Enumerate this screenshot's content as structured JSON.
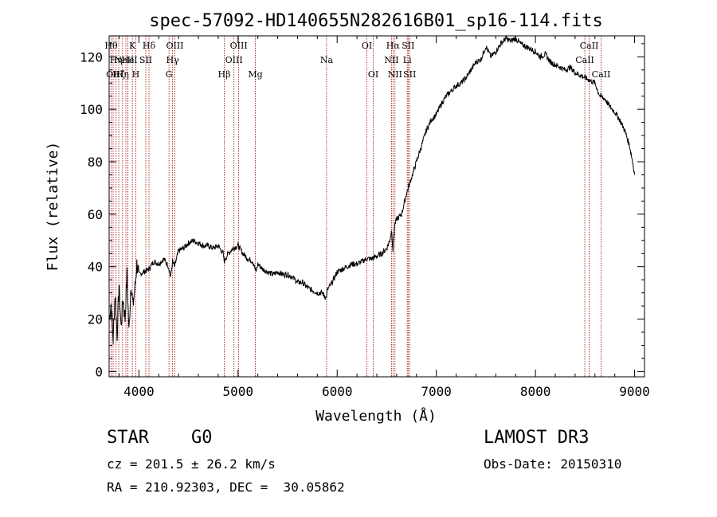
{
  "chart_data": {
    "type": "line",
    "title": "spec-57092-HD140655N282616B01_sp16-114.fits",
    "xlabel": "Wavelength (Å)",
    "ylabel": "Flux (relative)",
    "xlim": [
      3700,
      9100
    ],
    "ylim": [
      -2,
      128
    ],
    "xticks": [
      4000,
      5000,
      6000,
      7000,
      8000,
      9000
    ],
    "yticks": [
      0,
      20,
      40,
      60,
      80,
      100,
      120
    ],
    "grid": false,
    "series": [
      {
        "name": "flux",
        "x": [
          3700,
          3720,
          3740,
          3760,
          3780,
          3800,
          3820,
          3840,
          3860,
          3880,
          3900,
          3920,
          3940,
          3960,
          3980,
          4000,
          4050,
          4100,
          4150,
          4200,
          4250,
          4300,
          4320,
          4340,
          4360,
          4400,
          4450,
          4500,
          4550,
          4600,
          4650,
          4700,
          4750,
          4800,
          4850,
          4860,
          4900,
          4950,
          5000,
          5050,
          5100,
          5150,
          5180,
          5200,
          5250,
          5300,
          5350,
          5400,
          5450,
          5500,
          5550,
          5600,
          5650,
          5700,
          5750,
          5800,
          5850,
          5890,
          5900,
          5950,
          6000,
          6050,
          6100,
          6150,
          6200,
          6250,
          6300,
          6350,
          6400,
          6450,
          6500,
          6530,
          6550,
          6563,
          6580,
          6600,
          6650,
          6700,
          6750,
          6800,
          6850,
          6900,
          6950,
          7000,
          7050,
          7100,
          7150,
          7200,
          7250,
          7300,
          7350,
          7400,
          7450,
          7500,
          7550,
          7600,
          7650,
          7700,
          7750,
          7800,
          7850,
          7900,
          7950,
          8000,
          8050,
          8100,
          8150,
          8200,
          8250,
          8300,
          8350,
          8400,
          8450,
          8500,
          8550,
          8600,
          8650,
          8700,
          8750,
          8800,
          8850,
          8900,
          8950,
          8980,
          9000
        ],
        "y": [
          20,
          26,
          12,
          30,
          14,
          33,
          17,
          28,
          20,
          37,
          15,
          34,
          25,
          32,
          41,
          37,
          38,
          39,
          42,
          41,
          43,
          40,
          36,
          42,
          40,
          46,
          47,
          49,
          50,
          49,
          48,
          48,
          47,
          48,
          45,
          42,
          45,
          47,
          48,
          45,
          43,
          42,
          38,
          41,
          39,
          38,
          37,
          38,
          37,
          37,
          36,
          34,
          34,
          32,
          31,
          30,
          30,
          28,
          31,
          34,
          38,
          39,
          40,
          41,
          41,
          42,
          43,
          43,
          44,
          45,
          47,
          50,
          54,
          46,
          56,
          58,
          60,
          68,
          74,
          80,
          86,
          92,
          96,
          98,
          102,
          105,
          107,
          109,
          110,
          112,
          115,
          118,
          119,
          124,
          120,
          122,
          125,
          127,
          126,
          127,
          125,
          124,
          123,
          122,
          120,
          121,
          118,
          117,
          116,
          115,
          116,
          114,
          113,
          112,
          111,
          110,
          105,
          104,
          101,
          99,
          96,
          92,
          86,
          80,
          75
        ]
      }
    ],
    "lines": [
      {
        "x": 3720,
        "label": "Hθ",
        "row": 0
      },
      {
        "x": 3740,
        "label": "OII",
        "row": 2
      },
      {
        "x": 3770,
        "label": "Hη",
        "row": 1
      },
      {
        "x": 3797,
        "label": "Hζ",
        "row": 2
      },
      {
        "x": 3835,
        "label": "Hη",
        "row": 2
      },
      {
        "x": 3869,
        "label": "NeIII",
        "row": 1
      },
      {
        "x": 3889,
        "label": "He",
        "row": 1
      },
      {
        "x": 3934,
        "label": "K",
        "row": 0
      },
      {
        "x": 3969,
        "label": "H",
        "row": 2
      },
      {
        "x": 4070,
        "label": "SII",
        "row": 1
      },
      {
        "x": 4102,
        "label": "Hδ",
        "row": 0
      },
      {
        "x": 4304,
        "label": "G",
        "row": 2
      },
      {
        "x": 4340,
        "label": "Hγ",
        "row": 1
      },
      {
        "x": 4363,
        "label": "OIII",
        "row": 0
      },
      {
        "x": 4861,
        "label": "Hβ",
        "row": 2
      },
      {
        "x": 4959,
        "label": "OIII",
        "row": 1
      },
      {
        "x": 5007,
        "label": "OIII",
        "row": 0
      },
      {
        "x": 5175,
        "label": "Mg",
        "row": 2
      },
      {
        "x": 5893,
        "label": "Na",
        "row": 1
      },
      {
        "x": 6300,
        "label": "OI",
        "row": 0
      },
      {
        "x": 6364,
        "label": "OI",
        "row": 2
      },
      {
        "x": 6548,
        "label": "NII",
        "row": 1
      },
      {
        "x": 6563,
        "label": "Hα",
        "row": 0
      },
      {
        "x": 6583,
        "label": "NII",
        "row": 2
      },
      {
        "x": 6707,
        "label": "Li",
        "row": 1
      },
      {
        "x": 6716,
        "label": "SII",
        "row": 0
      },
      {
        "x": 6731,
        "label": "SII",
        "row": 2
      },
      {
        "x": 8498,
        "label": "CaII",
        "row": 1
      },
      {
        "x": 8542,
        "label": "CaII",
        "row": 0
      },
      {
        "x": 8662,
        "label": "CaII",
        "row": 2
      }
    ]
  },
  "info": {
    "class_label": "STAR",
    "subclass": "G0",
    "survey": "LAMOST DR3",
    "redshift_text": "cz = 201.5 ± 26.2 km/s",
    "obs_date_text": "Obs-Date: 20150310",
    "coords_text": "RA = 210.92303, DEC =  30.05862"
  },
  "colors": {
    "line_marker": "#a00000",
    "spectrum": "#000000"
  }
}
